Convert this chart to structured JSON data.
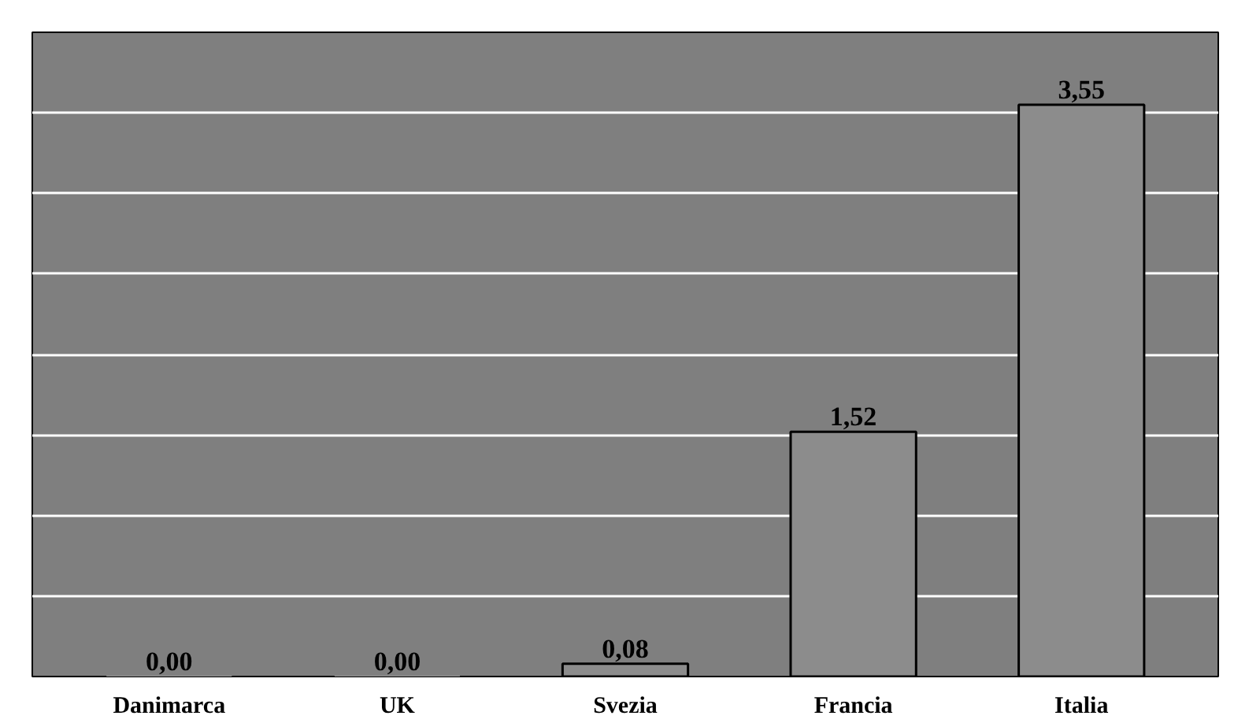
{
  "chart_data": {
    "type": "bar",
    "categories": [
      "Danimarca",
      "UK",
      "Svezia",
      "Francia",
      "Italia"
    ],
    "values": [
      0.0,
      0.0,
      0.08,
      1.52,
      3.55
    ],
    "value_labels": [
      "0,00",
      "0,00",
      "0,08",
      "1,52",
      "3,55"
    ],
    "color": "#8c8c8c",
    "ylim": [
      0,
      4
    ],
    "yticks": [
      {
        "value": 0,
        "label": null
      },
      {
        "value": 0.5,
        "label": null
      },
      {
        "value": 1,
        "label": null
      },
      {
        "value": 1.5,
        "label": null
      },
      {
        "value": 2,
        "label": null
      },
      {
        "value": 2.5,
        "label": null
      },
      {
        "value": 3,
        "label": null
      },
      {
        "value": 3.5,
        "label": null
      },
      {
        "value": 4,
        "label": null
      }
    ],
    "grid": "y",
    "tick_labels": "x"
  }
}
